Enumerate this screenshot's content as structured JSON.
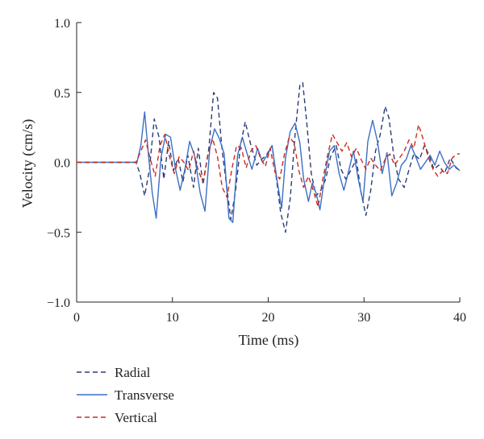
{
  "chart_data": {
    "type": "line",
    "title": "",
    "xlabel": "Time (ms)",
    "ylabel": "Velocity (cm/s)",
    "xlim": [
      0,
      40
    ],
    "ylim": [
      -1.0,
      1.0
    ],
    "xticks": [
      0,
      10,
      20,
      30,
      40
    ],
    "xtick_labels": [
      "0",
      "10",
      "20",
      "30",
      "40"
    ],
    "yticks": [
      -1.0,
      -0.5,
      0.0,
      0.5,
      1.0
    ],
    "ytick_labels": [
      "−1.0",
      "−0.5",
      "0.0",
      "0.5",
      "1.0"
    ],
    "grid": false,
    "legend_position": "bottom-left",
    "series": [
      {
        "name": "Radial",
        "color": "#2b3a78",
        "dash": "dashed",
        "x": [
          0,
          6.2,
          6.6,
          7.1,
          7.6,
          8.1,
          8.6,
          9.1,
          9.6,
          10.1,
          10.6,
          11.1,
          11.6,
          12.2,
          12.7,
          13.2,
          13.8,
          14.3,
          14.7,
          15.2,
          15.6,
          16.1,
          16.6,
          17.1,
          17.6,
          18.2,
          18.8,
          19.3,
          19.8,
          20.4,
          20.9,
          21.3,
          21.8,
          22.3,
          22.8,
          23.3,
          23.6,
          24.0,
          24.5,
          25.0,
          25.5,
          26.0,
          26.5,
          27.1,
          27.6,
          28.1,
          28.6,
          29.2,
          29.7,
          30.2,
          30.7,
          31.2,
          31.7,
          32.2,
          32.6,
          33.1,
          33.6,
          34.2,
          34.7,
          35.2,
          35.8,
          36.3,
          36.8,
          37.3,
          37.8,
          38.4,
          39.0,
          39.6,
          40.0
        ],
        "y": [
          0.0,
          0.0,
          -0.08,
          -0.24,
          -0.05,
          0.31,
          0.18,
          -0.12,
          0.15,
          -0.06,
          0.03,
          -0.14,
          0.05,
          -0.18,
          0.1,
          -0.16,
          0.1,
          0.5,
          0.46,
          0.08,
          -0.14,
          -0.41,
          -0.2,
          0.12,
          0.29,
          0.12,
          -0.02,
          0.02,
          0.05,
          0.12,
          -0.14,
          -0.36,
          -0.5,
          -0.26,
          0.2,
          0.55,
          0.57,
          0.3,
          -0.08,
          -0.24,
          -0.2,
          -0.12,
          0.04,
          0.12,
          -0.05,
          -0.12,
          -0.06,
          0.02,
          -0.22,
          -0.38,
          -0.2,
          0.08,
          0.2,
          0.4,
          0.32,
          0.05,
          -0.12,
          -0.18,
          -0.05,
          0.06,
          0.02,
          0.12,
          0.05,
          -0.05,
          -0.02,
          -0.08,
          0.03,
          -0.04,
          -0.06
        ]
      },
      {
        "name": "Transverse",
        "color": "#3b6fc4",
        "dash": "solid",
        "x": [
          0,
          6.3,
          6.7,
          7.1,
          7.5,
          7.9,
          8.3,
          8.8,
          9.3,
          9.8,
          10.3,
          10.8,
          11.3,
          11.8,
          12.3,
          12.9,
          13.4,
          13.9,
          14.4,
          14.9,
          15.4,
          15.9,
          16.3,
          16.8,
          17.3,
          17.8,
          18.3,
          18.9,
          19.4,
          19.9,
          20.4,
          20.9,
          21.4,
          21.8,
          22.3,
          22.8,
          23.3,
          23.7,
          24.2,
          24.6,
          25.0,
          25.4,
          25.9,
          26.4,
          26.9,
          27.4,
          27.9,
          28.4,
          28.9,
          29.4,
          29.9,
          30.4,
          30.9,
          31.4,
          31.9,
          32.4,
          32.9,
          33.4,
          33.9,
          34.4,
          34.9,
          35.4,
          35.9,
          36.4,
          36.9,
          37.4,
          37.9,
          38.4,
          38.9,
          39.4,
          40.0
        ],
        "y": [
          0.0,
          0.0,
          0.12,
          0.36,
          0.05,
          -0.22,
          -0.4,
          0.03,
          0.2,
          0.18,
          -0.04,
          -0.2,
          -0.05,
          0.15,
          0.05,
          -0.22,
          -0.35,
          0.1,
          0.24,
          0.17,
          0.06,
          -0.4,
          -0.43,
          0.05,
          0.18,
          0.06,
          -0.05,
          0.1,
          0.0,
          0.05,
          0.12,
          -0.12,
          -0.33,
          0.03,
          0.22,
          0.28,
          0.14,
          -0.12,
          -0.28,
          -0.15,
          -0.22,
          -0.34,
          -0.1,
          0.08,
          0.12,
          -0.08,
          -0.2,
          -0.06,
          0.08,
          -0.12,
          -0.28,
          0.15,
          0.3,
          0.15,
          -0.08,
          0.07,
          -0.24,
          -0.15,
          -0.02,
          0.02,
          0.12,
          0.04,
          -0.05,
          0.0,
          0.05,
          -0.02,
          0.08,
          0.0,
          -0.05,
          -0.02,
          -0.06
        ]
      },
      {
        "name": "Vertical",
        "color": "#cc2a1f",
        "dash": "dashed",
        "x": [
          0,
          6.2,
          6.7,
          7.2,
          7.7,
          8.2,
          8.7,
          9.2,
          9.7,
          10.2,
          10.7,
          11.2,
          11.7,
          12.2,
          12.7,
          13.2,
          13.7,
          14.2,
          14.7,
          15.2,
          15.7,
          16.2,
          16.7,
          17.2,
          17.7,
          18.2,
          18.7,
          19.2,
          19.7,
          20.2,
          20.7,
          21.2,
          21.7,
          22.2,
          22.7,
          23.2,
          23.7,
          24.2,
          24.7,
          25.2,
          25.7,
          26.2,
          26.7,
          27.2,
          27.7,
          28.2,
          28.7,
          29.2,
          29.7,
          30.2,
          30.7,
          31.2,
          31.7,
          32.2,
          32.7,
          33.2,
          33.7,
          34.2,
          34.7,
          35.2,
          35.7,
          36.2,
          36.7,
          37.2,
          37.7,
          38.2,
          38.7,
          39.2,
          39.7,
          40.0
        ],
        "y": [
          0.0,
          0.0,
          0.08,
          0.16,
          0.02,
          -0.1,
          0.12,
          0.2,
          0.04,
          -0.08,
          0.04,
          0.0,
          -0.06,
          0.08,
          -0.06,
          -0.14,
          0.05,
          0.17,
          0.04,
          -0.18,
          -0.25,
          -0.05,
          0.12,
          0.1,
          -0.04,
          0.08,
          0.12,
          0.03,
          -0.03,
          0.1,
          -0.07,
          -0.12,
          0.06,
          0.18,
          0.14,
          -0.06,
          -0.18,
          -0.1,
          -0.2,
          -0.32,
          -0.12,
          0.05,
          0.2,
          0.14,
          0.08,
          0.14,
          0.04,
          0.1,
          0.02,
          -0.05,
          0.03,
          -0.02,
          -0.06,
          0.02,
          0.06,
          -0.02,
          0.03,
          0.08,
          0.16,
          0.1,
          0.27,
          0.16,
          0.04,
          -0.05,
          -0.1,
          -0.06,
          -0.08,
          0.03,
          0.06,
          0.06
        ]
      }
    ]
  }
}
